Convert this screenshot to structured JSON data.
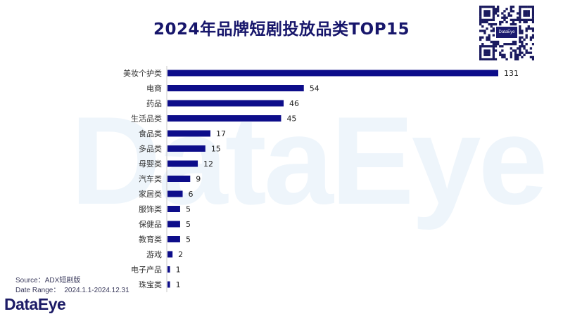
{
  "chart_data": {
    "type": "bar",
    "orientation": "horizontal",
    "title": "2024年品牌短剧投放品类TOP15",
    "categories": [
      "美妆个护类",
      "电商",
      "药品",
      "生活品类",
      "食品类",
      "多品类",
      "母婴类",
      "汽车类",
      "家居类",
      "服饰类",
      "保健品",
      "教育类",
      "游戏",
      "电子产品",
      "珠宝类"
    ],
    "values": [
      131,
      54,
      46,
      45,
      17,
      15,
      12,
      9,
      6,
      5,
      5,
      5,
      2,
      1,
      1
    ],
    "xlim": [
      0,
      131
    ],
    "bar_color": "#0d0d8a",
    "grid": false
  },
  "watermark": "DataEye",
  "qr_logo": "DataEye",
  "source": {
    "label": "Source：",
    "value": "ADX短剧版"
  },
  "date_range": {
    "label": "Date Range：",
    "value": "2024.1.1-2024.12.31"
  },
  "brand": "DataEye"
}
